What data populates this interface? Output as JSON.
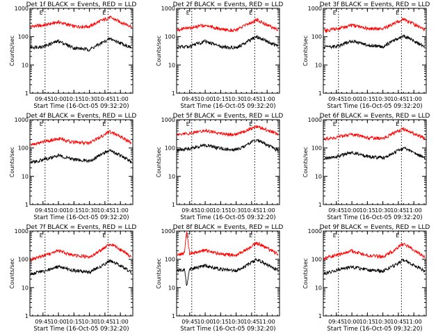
{
  "chart_data": [
    {
      "type": "line",
      "title": "Det 1f BLACK = Events, RED = LLD",
      "xlabel": "Start Time (16-Oct-05 09:32:20)",
      "ylabel": "Counts/sec",
      "yscale": "log",
      "ylim": [
        1,
        1000
      ],
      "yticks": [
        "1",
        "10",
        "100",
        "1000"
      ],
      "xticks": [
        "09:45",
        "10:00",
        "10:15",
        "10:30",
        "10:45",
        "11:00"
      ],
      "markers": [
        {
          "label": "E",
          "time": "09:47"
        },
        {
          "label": "E",
          "time": "10:48"
        }
      ],
      "series": [
        {
          "color": "#ff0000",
          "x": [
            "09:33",
            "09:45",
            "10:00",
            "10:15",
            "10:30",
            "10:40",
            "10:50",
            "11:00",
            "11:11"
          ],
          "y": [
            230,
            250,
            330,
            230,
            230,
            350,
            480,
            330,
            230
          ]
        },
        {
          "color": "#000000",
          "x": [
            "09:33",
            "09:45",
            "10:00",
            "10:15",
            "10:30",
            "10:40",
            "10:50",
            "11:00",
            "11:11"
          ],
          "y": [
            42,
            45,
            70,
            40,
            35,
            55,
            85,
            60,
            40
          ]
        }
      ]
    },
    {
      "type": "line",
      "title": "Det 2f BLACK = Events, RED = LLD",
      "xlabel": "Start Time (16-Oct-05 09:32:20)",
      "ylabel": "Counts/sec",
      "yscale": "log",
      "ylim": [
        1,
        1000
      ],
      "yticks": [
        "1",
        "10",
        "100",
        "1000"
      ],
      "xticks": [
        "09:45",
        "10:00",
        "10:15",
        "10:30",
        "10:45",
        "11:00"
      ],
      "markers": [
        {
          "label": "E",
          "time": "09:47"
        },
        {
          "label": "E",
          "time": "10:48"
        }
      ],
      "series": [
        {
          "color": "#ff0000",
          "x": [
            "09:33",
            "09:45",
            "10:00",
            "10:15",
            "10:30",
            "10:40",
            "10:50",
            "11:00",
            "11:11"
          ],
          "y": [
            180,
            200,
            260,
            180,
            170,
            260,
            400,
            260,
            170
          ]
        },
        {
          "color": "#000000",
          "x": [
            "09:33",
            "09:45",
            "10:00",
            "10:15",
            "10:30",
            "10:40",
            "10:50",
            "11:00",
            "11:11"
          ],
          "y": [
            42,
            45,
            70,
            45,
            40,
            65,
            100,
            70,
            45
          ]
        }
      ]
    },
    {
      "type": "line",
      "title": "Det 3f BLACK = Events, RED = LLD",
      "xlabel": "Start Time (16-Oct-05 09:32:20)",
      "ylabel": "Counts/sec",
      "yscale": "log",
      "ylim": [
        1,
        1000
      ],
      "yticks": [
        "1",
        "10",
        "100",
        "1000"
      ],
      "xticks": [
        "09:45",
        "10:00",
        "10:15",
        "10:30",
        "10:45",
        "11:00"
      ],
      "markers": [
        {
          "label": "E",
          "time": "09:47"
        },
        {
          "label": "E",
          "time": "10:48"
        }
      ],
      "series": [
        {
          "color": "#ff0000",
          "x": [
            "09:33",
            "09:45",
            "10:00",
            "10:15",
            "10:30",
            "10:40",
            "10:50",
            "11:00",
            "11:11"
          ],
          "y": [
            160,
            190,
            250,
            200,
            190,
            280,
            420,
            280,
            180
          ]
        },
        {
          "color": "#000000",
          "x": [
            "09:33",
            "09:45",
            "10:00",
            "10:15",
            "10:30",
            "10:40",
            "10:50",
            "11:00",
            "11:11"
          ],
          "y": [
            42,
            45,
            70,
            50,
            45,
            70,
            110,
            70,
            45
          ]
        }
      ]
    },
    {
      "type": "line",
      "title": "Det 4f BLACK = Events, RED = LLD",
      "xlabel": "Start Time (16-Oct-05 09:32:20)",
      "ylabel": "Counts/sec",
      "yscale": "log",
      "ylim": [
        1,
        1000
      ],
      "yticks": [
        "1",
        "10",
        "100",
        "1000"
      ],
      "xticks": [
        "09:45",
        "10:00",
        "10:15",
        "10:30",
        "10:45",
        "11:00"
      ],
      "markers": [
        {
          "label": "E",
          "time": "09:47"
        },
        {
          "label": "E",
          "time": "10:48"
        }
      ],
      "series": [
        {
          "color": "#ff0000",
          "x": [
            "09:33",
            "09:45",
            "10:00",
            "10:15",
            "10:30",
            "10:40",
            "10:50",
            "11:00",
            "11:11"
          ],
          "y": [
            130,
            160,
            220,
            160,
            150,
            240,
            380,
            250,
            150
          ]
        },
        {
          "color": "#000000",
          "x": [
            "09:33",
            "09:45",
            "10:00",
            "10:15",
            "10:30",
            "10:40",
            "10:50",
            "11:00",
            "11:11"
          ],
          "y": [
            30,
            38,
            55,
            40,
            35,
            55,
            85,
            55,
            32
          ]
        }
      ]
    },
    {
      "type": "line",
      "title": "Det 5f BLACK = Events, RED = LLD",
      "xlabel": "Start Time (16-Oct-05 09:32:20)",
      "ylabel": "Counts/sec",
      "yscale": "log",
      "ylim": [
        1,
        1000
      ],
      "yticks": [
        "1",
        "10",
        "100",
        "1000"
      ],
      "xticks": [
        "09:45",
        "10:00",
        "10:15",
        "10:30",
        "10:45",
        "11:00"
      ],
      "markers": [
        {
          "label": "E",
          "time": "09:47"
        },
        {
          "label": "E",
          "time": "10:48"
        }
      ],
      "series": [
        {
          "color": "#ff0000",
          "x": [
            "09:33",
            "09:45",
            "10:00",
            "10:15",
            "10:30",
            "10:40",
            "10:50",
            "11:00",
            "11:11"
          ],
          "y": [
            290,
            330,
            420,
            320,
            300,
            420,
            600,
            430,
            300
          ]
        },
        {
          "color": "#000000",
          "x": [
            "09:33",
            "09:45",
            "10:00",
            "10:15",
            "10:30",
            "10:40",
            "10:50",
            "11:00",
            "11:11"
          ],
          "y": [
            80,
            95,
            130,
            95,
            85,
            130,
            200,
            130,
            80
          ]
        }
      ]
    },
    {
      "type": "line",
      "title": "Det 6f BLACK = Events, RED = LLD",
      "xlabel": "Start Time (16-Oct-05 09:32:20)",
      "ylabel": "Counts/sec",
      "yscale": "log",
      "ylim": [
        1,
        1000
      ],
      "yticks": [
        "1",
        "10",
        "100",
        "1000"
      ],
      "xticks": [
        "09:45",
        "10:00",
        "10:15",
        "10:30",
        "10:45",
        "11:00"
      ],
      "markers": [
        {
          "label": "E",
          "time": "09:47"
        },
        {
          "label": "E",
          "time": "10:48"
        }
      ],
      "series": [
        {
          "color": "#ff0000",
          "x": [
            "09:33",
            "09:45",
            "10:00",
            "10:15",
            "10:30",
            "10:40",
            "10:50",
            "11:00",
            "11:11"
          ],
          "y": [
            210,
            240,
            310,
            230,
            220,
            320,
            480,
            320,
            220
          ]
        },
        {
          "color": "#000000",
          "x": [
            "09:33",
            "09:45",
            "10:00",
            "10:15",
            "10:30",
            "10:40",
            "10:50",
            "11:00",
            "11:11"
          ],
          "y": [
            45,
            50,
            70,
            50,
            45,
            65,
            100,
            70,
            45
          ]
        }
      ]
    },
    {
      "type": "line",
      "title": "Det 7f BLACK = Events, RED = LLD",
      "xlabel": "Start Time (16-Oct-05 09:32:20)",
      "ylabel": "Counts/sec",
      "yscale": "log",
      "ylim": [
        1,
        1000
      ],
      "yticks": [
        "1",
        "10",
        "100",
        "1000"
      ],
      "xticks": [
        "09:45",
        "10:00",
        "10:15",
        "10:30",
        "10:45",
        "11:00"
      ],
      "markers": [
        {
          "label": "E",
          "time": "09:47"
        },
        {
          "label": "E",
          "time": "10:48"
        }
      ],
      "series": [
        {
          "color": "#ff0000",
          "x": [
            "09:33",
            "09:45",
            "10:00",
            "10:15",
            "10:30",
            "10:40",
            "10:50",
            "11:00",
            "11:11"
          ],
          "y": [
            100,
            130,
            200,
            140,
            120,
            200,
            350,
            220,
            120
          ]
        },
        {
          "color": "#000000",
          "x": [
            "09:33",
            "09:45",
            "10:00",
            "10:15",
            "10:30",
            "10:40",
            "10:50",
            "11:00",
            "11:11"
          ],
          "y": [
            30,
            38,
            55,
            40,
            35,
            55,
            90,
            60,
            35
          ]
        }
      ]
    },
    {
      "type": "line",
      "title": "Det 8f BLACK = Events, RED = LLD",
      "xlabel": "Start Time (16-Oct-05 09:32:20)",
      "ylabel": "Counts/sec",
      "yscale": "log",
      "ylim": [
        1,
        1000
      ],
      "yticks": [
        "1",
        "10",
        "100",
        "1000"
      ],
      "xticks": [
        "09:45",
        "10:00",
        "10:15",
        "10:30",
        "10:45",
        "11:00"
      ],
      "markers": [
        {
          "label": "E",
          "time": "09:47"
        },
        {
          "label": "E",
          "time": "10:48"
        }
      ],
      "series": [
        {
          "color": "#ff0000",
          "x": [
            "09:33",
            "09:40",
            "09:42",
            "09:45",
            "10:00",
            "10:15",
            "10:30",
            "10:40",
            "10:50",
            "11:00",
            "11:11"
          ],
          "y": [
            140,
            170,
            1000,
            160,
            210,
            150,
            140,
            230,
            380,
            250,
            150
          ]
        },
        {
          "color": "#000000",
          "x": [
            "09:33",
            "09:40",
            "09:42",
            "09:45",
            "10:00",
            "10:15",
            "10:30",
            "10:40",
            "10:50",
            "11:00",
            "11:11"
          ],
          "y": [
            40,
            45,
            12,
            45,
            60,
            45,
            40,
            60,
            100,
            65,
            40
          ]
        }
      ]
    },
    {
      "type": "line",
      "title": "Det 9f BLACK = Events, RED = LLD",
      "xlabel": "Start Time (16-Oct-05 09:32:20)",
      "ylabel": "Counts/sec",
      "yscale": "log",
      "ylim": [
        1,
        1000
      ],
      "yticks": [
        "1",
        "10",
        "100",
        "1000"
      ],
      "xticks": [
        "09:45",
        "10:00",
        "10:15",
        "10:30",
        "10:45",
        "11:00"
      ],
      "markers": [
        {
          "label": "E",
          "time": "09:47"
        },
        {
          "label": "E",
          "time": "10:48"
        }
      ],
      "series": [
        {
          "color": "#ff0000",
          "x": [
            "09:33",
            "09:45",
            "10:00",
            "10:15",
            "10:30",
            "10:40",
            "10:50",
            "11:00",
            "11:11"
          ],
          "y": [
            110,
            140,
            200,
            140,
            125,
            200,
            360,
            220,
            120
          ]
        },
        {
          "color": "#000000",
          "x": [
            "09:33",
            "09:45",
            "10:00",
            "10:15",
            "10:30",
            "10:40",
            "10:50",
            "11:00",
            "11:11"
          ],
          "y": [
            32,
            40,
            55,
            42,
            38,
            58,
            95,
            62,
            38
          ]
        }
      ]
    }
  ]
}
